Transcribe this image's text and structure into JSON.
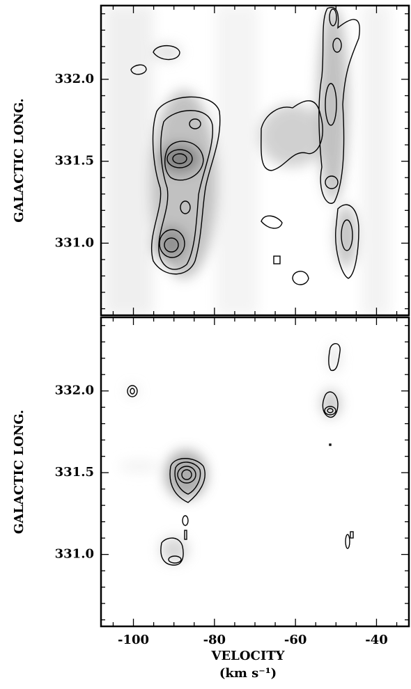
{
  "chart_data": [
    {
      "type": "contour",
      "ylabel": "GALACTIC LONG.",
      "xlim": [
        -108,
        -32
      ],
      "ylim": [
        330.56,
        332.45
      ],
      "xticks": [
        -100,
        -80,
        -60,
        -40
      ],
      "xminorticks": [
        -105,
        -95,
        -90,
        -85,
        -75,
        -70,
        -65,
        -55,
        -50,
        -45,
        -35
      ],
      "yticks": [
        {
          "value": 331.0,
          "label": "331.0"
        },
        {
          "value": 331.5,
          "label": "331.5"
        },
        {
          "value": 332.0,
          "label": "332.0"
        }
      ],
      "yminorticks": [
        330.6,
        330.7,
        330.8,
        330.9,
        331.1,
        331.2,
        331.3,
        331.4,
        331.6,
        331.7,
        331.8,
        331.9,
        332.1,
        332.2,
        332.3,
        332.4
      ]
    },
    {
      "type": "contour",
      "ylabel": "GALACTIC LONG.",
      "xlabel": "VELOCITY",
      "xunit": "(km s⁻¹)",
      "xlim": [
        -108,
        -32
      ],
      "ylim": [
        330.56,
        332.45
      ],
      "xticks": [
        -100,
        -80,
        -60,
        -40
      ],
      "xminorticks": [
        -105,
        -95,
        -90,
        -85,
        -75,
        -70,
        -65,
        -55,
        -50,
        -45,
        -35
      ],
      "yticks": [
        {
          "value": 331.0,
          "label": "331.0"
        },
        {
          "value": 331.5,
          "label": "331.5"
        },
        {
          "value": 332.0,
          "label": "332.0"
        }
      ],
      "yminorticks": [
        330.6,
        330.7,
        330.8,
        330.9,
        331.1,
        331.2,
        331.3,
        331.4,
        331.6,
        331.7,
        331.8,
        331.9,
        332.1,
        332.2,
        332.3,
        332.4
      ]
    }
  ]
}
